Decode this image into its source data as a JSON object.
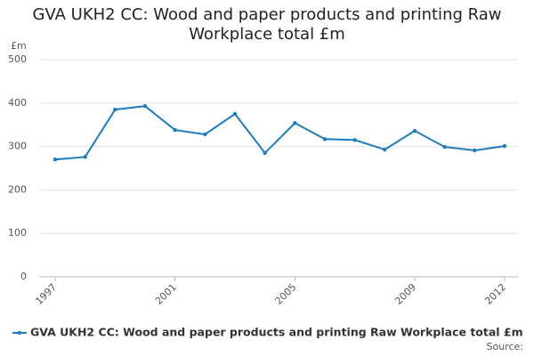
{
  "chart_data": {
    "type": "line",
    "title": "GVA UKH2 CC: Wood and paper products and printing Raw Workplace total £m",
    "y_label": "£m",
    "source": "Source:",
    "x": [
      1997,
      1998,
      1999,
      2000,
      2001,
      2002,
      2003,
      2004,
      2005,
      2006,
      2007,
      2008,
      2009,
      2010,
      2011,
      2012
    ],
    "series": [
      {
        "name": "GVA UKH2 CC: Wood and paper products and printing Raw Workplace total £m",
        "color": "#1f7bbf",
        "values": [
          270,
          276,
          385,
          393,
          338,
          328,
          375,
          285,
          354,
          317,
          315,
          293,
          336,
          299,
          291,
          301
        ]
      }
    ],
    "xlim": [
      1997,
      2012
    ],
    "xticks": [
      1997,
      2001,
      2005,
      2009,
      2012
    ],
    "ylim": [
      0,
      500
    ],
    "yticks": [
      0,
      100,
      200,
      300,
      400,
      500
    ],
    "grid": true
  }
}
